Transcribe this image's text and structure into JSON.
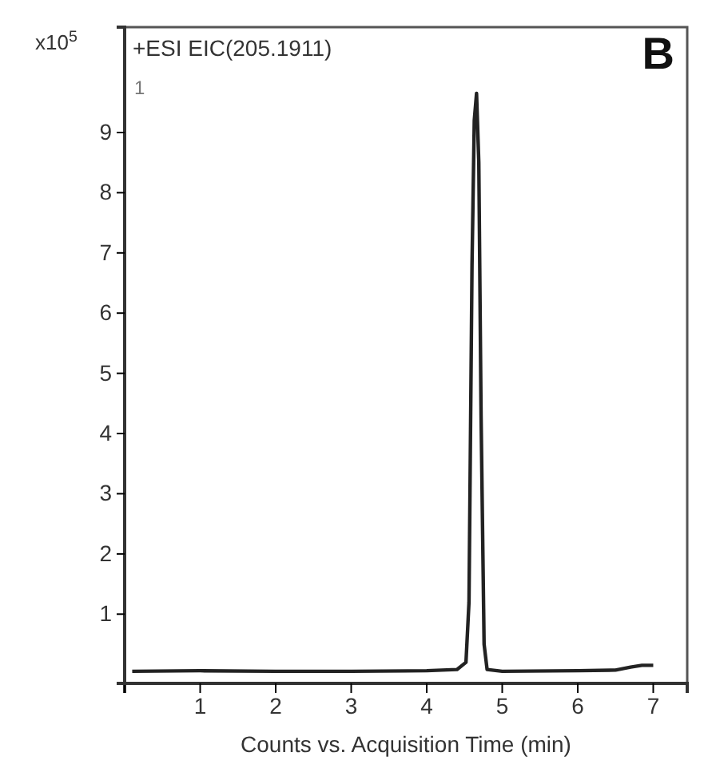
{
  "chart_data": {
    "type": "line",
    "title": "+ESI  EIC(205.1911)",
    "xlabel": "Counts vs. Acquisition Time (min)",
    "ylabel": "x10$^{5}$",
    "annotations": [
      "B",
      "1"
    ],
    "x": [
      0.1,
      1.0,
      2.0,
      3.0,
      4.0,
      4.4,
      4.52,
      4.56,
      4.6,
      4.63,
      4.66,
      4.69,
      4.72,
      4.76,
      4.8,
      5.0,
      6.0,
      6.5,
      6.7,
      6.85,
      7.0
    ],
    "series": [
      {
        "color": "#222222",
        "values": [
          0.05,
          0.06,
          0.05,
          0.05,
          0.06,
          0.08,
          0.2,
          1.2,
          6.8,
          9.2,
          9.65,
          8.5,
          4.3,
          0.5,
          0.08,
          0.05,
          0.06,
          0.07,
          0.12,
          0.15,
          0.15
        ]
      }
    ],
    "xlim": [
      0,
      7.45
    ],
    "xticks": [
      {
        "value": 0,
        "label": null
      },
      1,
      2,
      3,
      4,
      5,
      6,
      7
    ],
    "ylim": [
      -0.15,
      10.75
    ],
    "yticks": [
      1,
      2,
      3,
      4,
      5,
      6,
      7,
      8,
      9
    ],
    "grid": false,
    "marker": "none",
    "line_style": "solid"
  }
}
